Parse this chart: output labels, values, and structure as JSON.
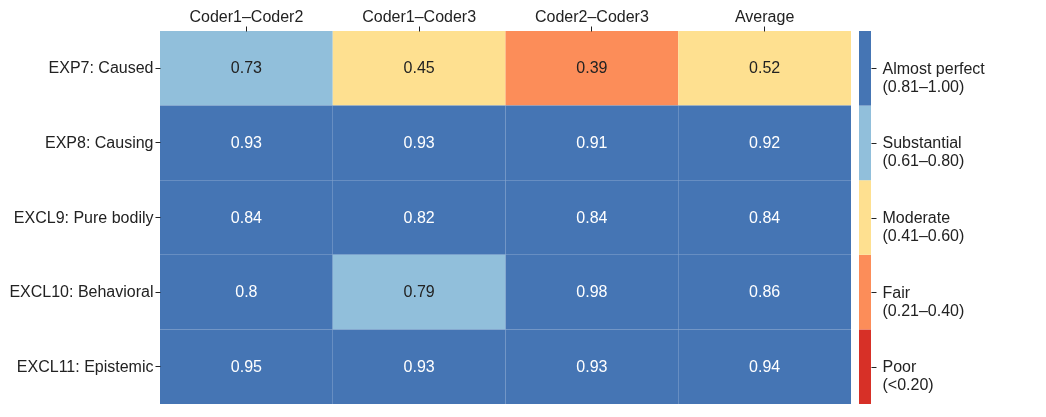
{
  "chart_data": {
    "type": "heatmap",
    "categories": [
      "Coder1–Coder2",
      "Coder1–Coder3",
      "Coder2–Coder3",
      "Average"
    ],
    "y_categories": [
      "EXP7: Caused",
      "EXP8: Causing",
      "EXCL9: Pure bodily",
      "EXCL10: Behavioral",
      "EXCL11: Epistemic"
    ],
    "cells": [
      [
        0.73,
        0.45,
        0.39,
        0.52
      ],
      [
        0.93,
        0.93,
        0.91,
        0.92
      ],
      [
        0.84,
        0.82,
        0.84,
        0.84
      ],
      [
        0.8,
        0.79,
        0.98,
        0.86
      ],
      [
        0.95,
        0.93,
        0.93,
        0.94
      ]
    ],
    "data_labels": true,
    "clim": [
      0,
      1
    ],
    "cticks": [
      {
        "value": 0.1,
        "label": "Poor\n(<0.20)"
      },
      {
        "value": 0.3,
        "label": "Fair\n(0.21–0.40)"
      },
      {
        "value": 0.5,
        "label": "Moderate\n(0.41–0.60)"
      },
      {
        "value": 0.7,
        "label": "Substantial\n(0.61–0.80)"
      },
      {
        "value": 0.9,
        "label": "Almost perfect\n(0.81–1.00)"
      }
    ],
    "colors": [
      "#d73027",
      "#fc8d59",
      "#fee090",
      "#91bfdb",
      "#4575b4"
    ]
  }
}
